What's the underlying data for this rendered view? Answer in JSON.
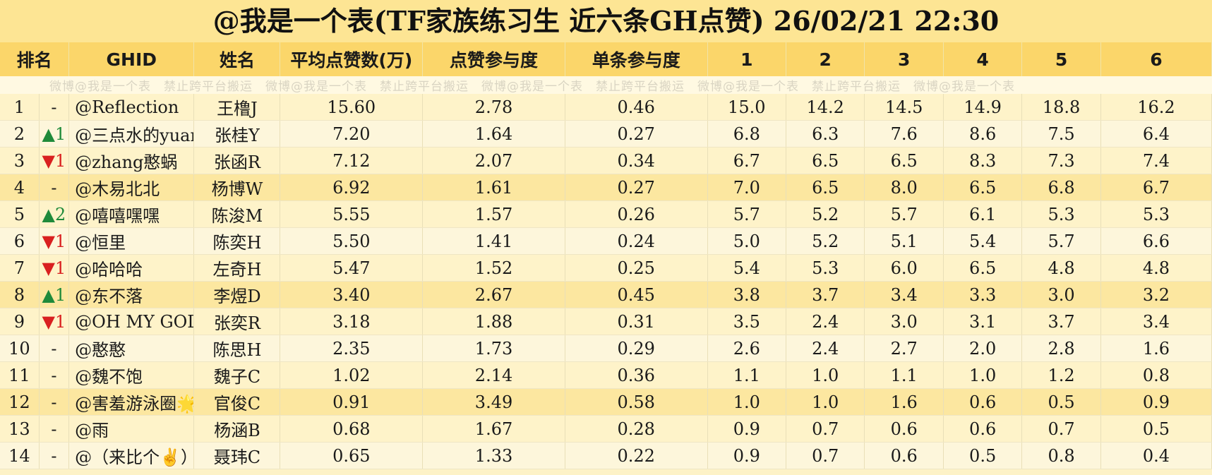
{
  "title": "@我是一个表(TF家族练习生 近六条GH点赞) 26/02/21 22:30",
  "headers": [
    "排名",
    "GHID",
    "姓名",
    "平均点赞数(万)",
    "点赞参与度",
    "单条参与度",
    "1",
    "2",
    "3",
    "4",
    "5",
    "6"
  ],
  "watermark": "微博@我是一个表　禁止跨平台搬运　微博@我是一个表　禁止跨平台搬运　微博@我是一个表　禁止跨平台搬运　微博@我是一个表　禁止跨平台搬运　微博@我是一个表",
  "rows": [
    {
      "rank": "1",
      "change": "-",
      "dir": "none",
      "ghid": "@Reflection",
      "name": "王橹J",
      "avg": "15.60",
      "part": "2.78",
      "single": "0.46",
      "v": [
        "15.0",
        "14.2",
        "14.5",
        "14.9",
        "18.8",
        "16.2"
      ]
    },
    {
      "rank": "2",
      "change": "▲1",
      "dir": "up",
      "ghid": "@三点水的yuan",
      "name": "张桂Y",
      "avg": "7.20",
      "part": "1.64",
      "single": "0.27",
      "v": [
        "6.8",
        "6.3",
        "7.6",
        "8.6",
        "7.5",
        "6.4"
      ]
    },
    {
      "rank": "3",
      "change": "▼1",
      "dir": "down",
      "ghid": "@zhang憨蜗",
      "name": "张函R",
      "avg": "7.12",
      "part": "2.07",
      "single": "0.34",
      "v": [
        "6.7",
        "6.5",
        "6.5",
        "8.3",
        "7.3",
        "7.4"
      ]
    },
    {
      "rank": "4",
      "change": "-",
      "dir": "none",
      "ghid": "@木易北北",
      "name": "杨博W",
      "avg": "6.92",
      "part": "1.61",
      "single": "0.27",
      "v": [
        "7.0",
        "6.5",
        "8.0",
        "6.5",
        "6.8",
        "6.7"
      ]
    },
    {
      "rank": "5",
      "change": "▲2",
      "dir": "up",
      "ghid": "@嘻嘻嘿嘿",
      "name": "陈浚M",
      "avg": "5.55",
      "part": "1.57",
      "single": "0.26",
      "v": [
        "5.7",
        "5.2",
        "5.7",
        "6.1",
        "5.3",
        "5.3"
      ]
    },
    {
      "rank": "6",
      "change": "▼1",
      "dir": "down",
      "ghid": "@恒里",
      "name": "陈奕H",
      "avg": "5.50",
      "part": "1.41",
      "single": "0.24",
      "v": [
        "5.0",
        "5.2",
        "5.1",
        "5.4",
        "5.7",
        "6.6"
      ]
    },
    {
      "rank": "7",
      "change": "▼1",
      "dir": "down",
      "ghid": "@哈哈哈",
      "name": "左奇H",
      "avg": "5.47",
      "part": "1.52",
      "single": "0.25",
      "v": [
        "5.4",
        "5.3",
        "6.0",
        "6.5",
        "4.8",
        "4.8"
      ]
    },
    {
      "rank": "8",
      "change": "▲1",
      "dir": "up",
      "ghid": "@东不落",
      "name": "李煜D",
      "avg": "3.40",
      "part": "2.67",
      "single": "0.45",
      "v": [
        "3.8",
        "3.7",
        "3.4",
        "3.3",
        "3.0",
        "3.2"
      ]
    },
    {
      "rank": "9",
      "change": "▼1",
      "dir": "down",
      "ghid": "@OH MY GOD",
      "name": "张奕R",
      "avg": "3.18",
      "part": "1.88",
      "single": "0.31",
      "v": [
        "3.5",
        "2.4",
        "3.0",
        "3.1",
        "3.7",
        "3.4"
      ]
    },
    {
      "rank": "10",
      "change": "-",
      "dir": "none",
      "ghid": "@憨憨",
      "name": "陈思H",
      "avg": "2.35",
      "part": "1.73",
      "single": "0.29",
      "v": [
        "2.6",
        "2.4",
        "2.7",
        "2.0",
        "2.8",
        "1.6"
      ]
    },
    {
      "rank": "11",
      "change": "-",
      "dir": "none",
      "ghid": "@魏不饱",
      "name": "魏子C",
      "avg": "1.02",
      "part": "2.14",
      "single": "0.36",
      "v": [
        "1.1",
        "1.0",
        "1.1",
        "1.0",
        "1.2",
        "0.8"
      ]
    },
    {
      "rank": "12",
      "change": "-",
      "dir": "none",
      "ghid": "@害羞游泳圈🌟",
      "name": "官俊C",
      "avg": "0.91",
      "part": "3.49",
      "single": "0.58",
      "v": [
        "1.0",
        "1.0",
        "1.6",
        "0.6",
        "0.5",
        "0.9"
      ]
    },
    {
      "rank": "13",
      "change": "-",
      "dir": "none",
      "ghid": "@雨",
      "name": "杨涵B",
      "avg": "0.68",
      "part": "1.67",
      "single": "0.28",
      "v": [
        "0.9",
        "0.7",
        "0.6",
        "0.6",
        "0.7",
        "0.5"
      ]
    },
    {
      "rank": "14",
      "change": "-",
      "dir": "none",
      "ghid": "@（来比个✌️）",
      "name": "聂玮C",
      "avg": "0.65",
      "part": "1.33",
      "single": "0.22",
      "v": [
        "0.9",
        "0.7",
        "0.6",
        "0.5",
        "0.8",
        "0.4"
      ]
    }
  ],
  "colors": {
    "title_bg": "#fde594",
    "header_bg": "#fbd66a",
    "up": "#1f8a3a",
    "down": "#d92020"
  }
}
